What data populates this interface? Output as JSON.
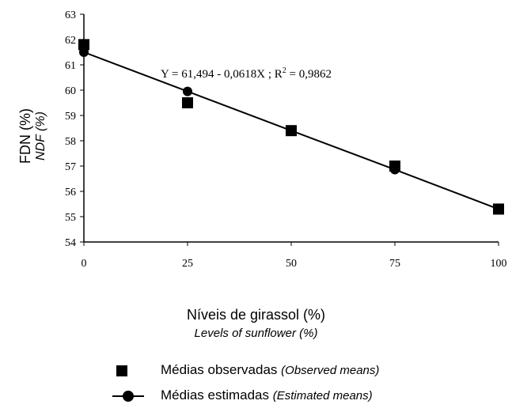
{
  "chart_data": {
    "type": "scatter",
    "title": "",
    "xlabel": "Níveis de girassol (%)",
    "xlabel_en": "Levels of sunflower (%)",
    "ylabel": "FDN (%)",
    "ylabel_en": "NDF (%)",
    "xlim": [
      0,
      100
    ],
    "ylim": [
      54,
      63
    ],
    "x_ticks": [
      "0",
      "25",
      "50",
      "75",
      "100"
    ],
    "y_ticks": [
      "54",
      "55",
      "56",
      "57",
      "58",
      "59",
      "60",
      "61",
      "62",
      "63"
    ],
    "grid": false,
    "legend_position": "bottom",
    "equation": "Y = 61,494 - 0,0618X ; R",
    "equation_sup": "2",
    "equation_tail": " = 0,9862",
    "series": [
      {
        "name": "Médias observadas",
        "name_en": "(Observed means)",
        "marker": "square",
        "x": [
          0,
          25,
          50,
          75,
          100
        ],
        "y": [
          61.8,
          59.5,
          58.4,
          57.0,
          55.3
        ]
      },
      {
        "name": "Médias estimadas",
        "name_en": "(Estimated means)",
        "marker": "circle-line",
        "x": [
          0,
          25,
          50,
          75,
          100
        ],
        "y": [
          61.5,
          59.95,
          58.4,
          56.86,
          55.3
        ]
      }
    ],
    "colors": {
      "marker": "#000000",
      "line": "#000000"
    }
  }
}
